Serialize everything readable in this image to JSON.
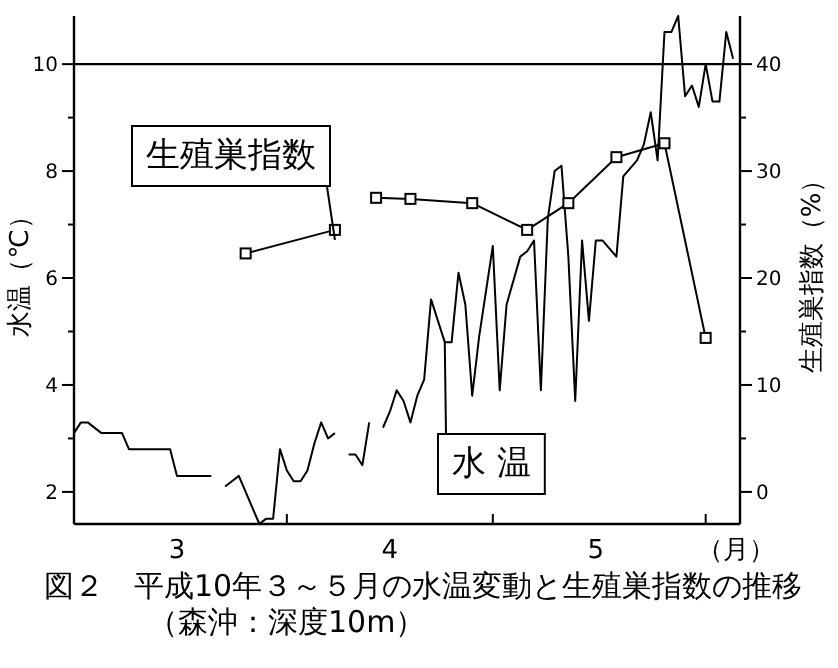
{
  "chart_data": {
    "type": "line",
    "title": "図２　平成10年３～５月の水温変動と生殖巣指数の推移（森沖：深度10m）",
    "xlabel": "（月）",
    "ylabel": "水温（℃）",
    "y2label": "生殖巣指数（%）",
    "xlim": [
      "--03-01",
      "--06-06"
    ],
    "xticks": [
      {
        "value": "--03-16",
        "label": "3"
      },
      {
        "value": "--04-01",
        "label": null
      },
      {
        "value": "--04-16",
        "label": "4"
      },
      {
        "value": "--05-01",
        "label": null
      },
      {
        "value": "--05-16",
        "label": "5"
      },
      {
        "value": "--06-01",
        "label": null
      }
    ],
    "ylim": [
      1.4,
      10.9
    ],
    "yticks": [
      2,
      {
        "value": 3,
        "label": null
      },
      4,
      {
        "value": 5,
        "label": null
      },
      6,
      {
        "value": 7,
        "label": null
      },
      8,
      {
        "value": 9,
        "label": null
      },
      10
    ],
    "y2lim": [
      -3,
      44.5
    ],
    "y2ticks": [
      0,
      {
        "value": 5,
        "label": null
      },
      10,
      {
        "value": 15,
        "label": null
      },
      20,
      {
        "value": 25,
        "label": null
      },
      30,
      {
        "value": 35,
        "label": null
      },
      40
    ],
    "ref_lines": [
      {
        "axis": "y",
        "value": 10
      }
    ],
    "legend": false,
    "series": [
      {
        "name": "水 温",
        "color": "#000000",
        "marker": "none",
        "x": [
          "--03-01",
          "--03-02",
          "--03-03",
          "--03-05",
          "--03-08",
          "--03-09",
          "--03-15",
          "--03-16",
          "--03-21",
          "--03-22",
          "--03-23",
          "--03-24",
          "--03-25",
          "--03-26",
          "--03-28",
          "--03-29",
          "--03-30",
          "--03-31",
          "--04-01",
          "--04-02",
          "--04-03",
          "--04-04",
          "--04-05",
          "--04-06",
          "--04-07",
          "--04-08",
          "--04-09",
          "--04-10",
          "--04-11",
          "--04-12",
          "--04-13",
          "--04-14",
          "--04-15",
          "--04-16",
          "--04-17",
          "--04-18",
          "--04-19",
          "--04-20",
          "--04-21",
          "--04-22",
          "--04-24",
          "--04-25",
          "--04-26",
          "--04-27",
          "--04-28",
          "--04-29",
          "--05-01",
          "--05-02",
          "--05-03",
          "--05-05",
          "--05-06",
          "--05-07",
          "--05-08",
          "--05-09",
          "--05-10",
          "--05-11",
          "--05-12",
          "--05-13",
          "--05-14",
          "--05-15",
          "--05-16",
          "--05-17",
          "--05-19",
          "--05-20",
          "--05-22",
          "--05-23",
          "--05-24",
          "--05-25",
          "--05-26",
          "--05-27",
          "--05-28",
          "--05-29",
          "--05-30",
          "--05-31",
          "--06-01",
          "--06-02",
          "--06-03",
          "--06-04",
          "--06-05"
        ],
        "values": [
          3.1,
          3.3,
          3.3,
          3.1,
          3.1,
          2.8,
          2.8,
          2.3,
          2.3,
          null,
          2.1,
          2.2,
          2.3,
          2.0,
          1.4,
          1.5,
          1.5,
          2.8,
          2.4,
          2.2,
          2.2,
          2.4,
          2.9,
          3.3,
          3.0,
          3.1,
          null,
          2.7,
          2.7,
          2.5,
          3.3,
          null,
          3.2,
          3.5,
          3.9,
          3.7,
          3.3,
          3.8,
          4.1,
          5.6,
          4.8,
          4.8,
          6.1,
          5.5,
          3.8,
          4.9,
          6.6,
          3.9,
          5.5,
          6.4,
          6.5,
          6.7,
          3.9,
          7.1,
          8.0,
          8.1,
          6.4,
          3.7,
          6.7,
          5.2,
          6.7,
          6.7,
          6.4,
          7.9,
          8.2,
          8.5,
          9.1,
          8.2,
          10.6,
          10.6,
          10.9,
          9.4,
          9.6,
          9.2,
          10.0,
          9.3,
          9.3,
          10.6,
          10.1
        ]
      },
      {
        "name": "生殖巣指数",
        "color": "#000000",
        "axis": "y2",
        "marker": "square",
        "x": [
          "--03-26",
          "--04-08",
          "--04-11",
          "--04-14",
          "--04-19",
          "--04-28",
          "--05-06",
          "--05-12",
          "--05-19",
          "--05-26",
          "--06-01"
        ],
        "values": [
          22.3,
          24.5,
          null,
          27.5,
          27.4,
          27.0,
          24.5,
          27.0,
          31.3,
          32.6,
          14.4
        ]
      }
    ]
  }
}
